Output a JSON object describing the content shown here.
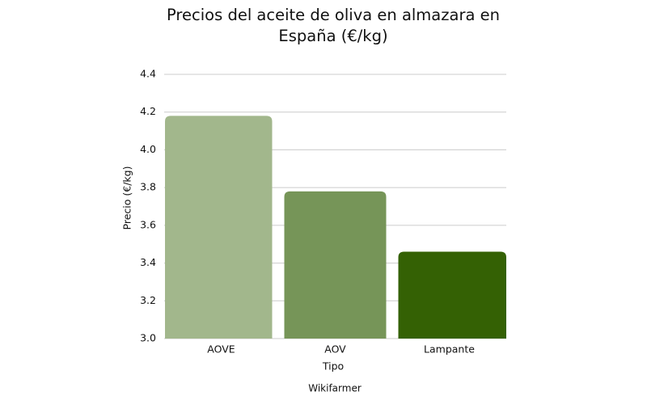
{
  "chart_data": {
    "type": "bar",
    "title": "Precios del aceite de oliva en almazara en España (€/kg)",
    "categories": [
      "AOVE",
      "AOV",
      "Lampante"
    ],
    "values": [
      4.18,
      3.78,
      3.46
    ],
    "colors": [
      "#a2b78c",
      "#769558",
      "#346104"
    ],
    "ylim": [
      3,
      4.4
    ],
    "yticks": [
      {
        "value": 3,
        "label": "3.0"
      },
      3.2,
      3.4,
      3.6,
      3.8,
      {
        "value": 4,
        "label": "4.0"
      },
      4.2,
      4.4
    ],
    "grid": true,
    "x_label": "Tipo",
    "y_label": "Precio (€/kg)",
    "source": "Wikifarmer"
  }
}
